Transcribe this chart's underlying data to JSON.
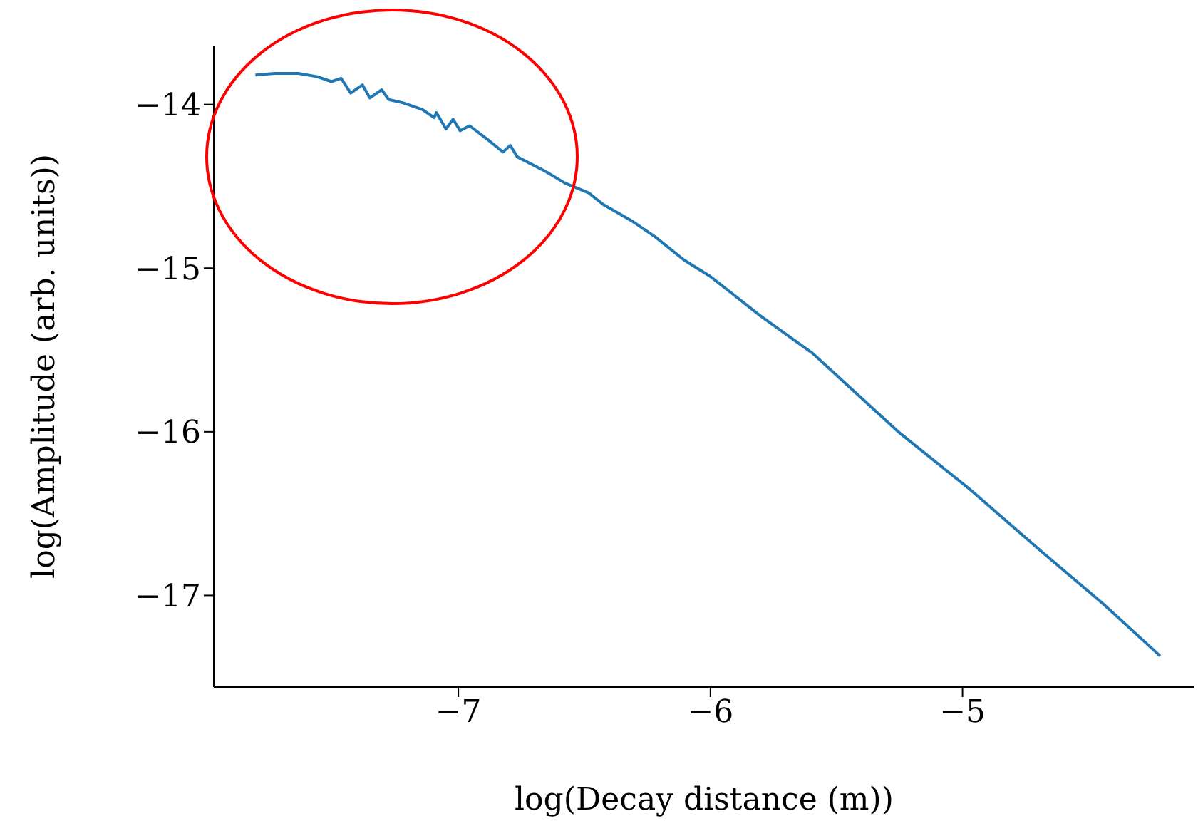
{
  "chart_data": {
    "type": "line",
    "xlabel": "log(Decay distance (m))",
    "ylabel": "log(Amplitude (arb. units))",
    "xlim": [
      -7.97,
      -4.08
    ],
    "ylim": [
      -17.56,
      -13.64
    ],
    "xticks": [
      {
        "value": -7,
        "label": "−7"
      },
      {
        "value": -6,
        "label": "−6"
      },
      {
        "value": -5,
        "label": "−5"
      }
    ],
    "yticks": [
      {
        "value": -17,
        "label": "−17"
      },
      {
        "value": -16,
        "label": "−16"
      },
      {
        "value": -15,
        "label": "−15"
      },
      {
        "value": -14,
        "label": "−14"
      }
    ],
    "grid": false,
    "marker": "none",
    "line_style": "solid",
    "series": [
      {
        "color": "#1f77b4",
        "x": [
          -7.805,
          -7.729,
          -7.635,
          -7.559,
          -7.503,
          -7.465,
          -7.427,
          -7.38,
          -7.351,
          -7.304,
          -7.276,
          -7.219,
          -7.143,
          -7.096,
          -7.087,
          -7.049,
          -7.021,
          -6.993,
          -6.955,
          -6.879,
          -6.823,
          -6.794,
          -6.766,
          -6.653,
          -6.577,
          -6.483,
          -6.426,
          -6.313,
          -6.218,
          -6.105,
          -6.001,
          -5.803,
          -5.595,
          -5.255,
          -4.972,
          -4.688,
          -4.443,
          -4.216
        ],
        "values": [
          -13.82,
          -13.81,
          -13.81,
          -13.83,
          -13.86,
          -13.84,
          -13.93,
          -13.88,
          -13.96,
          -13.91,
          -13.97,
          -13.99,
          -14.03,
          -14.08,
          -14.05,
          -14.15,
          -14.09,
          -14.16,
          -14.13,
          -14.22,
          -14.29,
          -14.25,
          -14.32,
          -14.41,
          -14.48,
          -14.54,
          -14.61,
          -14.71,
          -14.81,
          -14.95,
          -15.05,
          -15.29,
          -15.52,
          -16.0,
          -16.35,
          -16.73,
          -17.05,
          -17.37
        ]
      }
    ]
  }
}
